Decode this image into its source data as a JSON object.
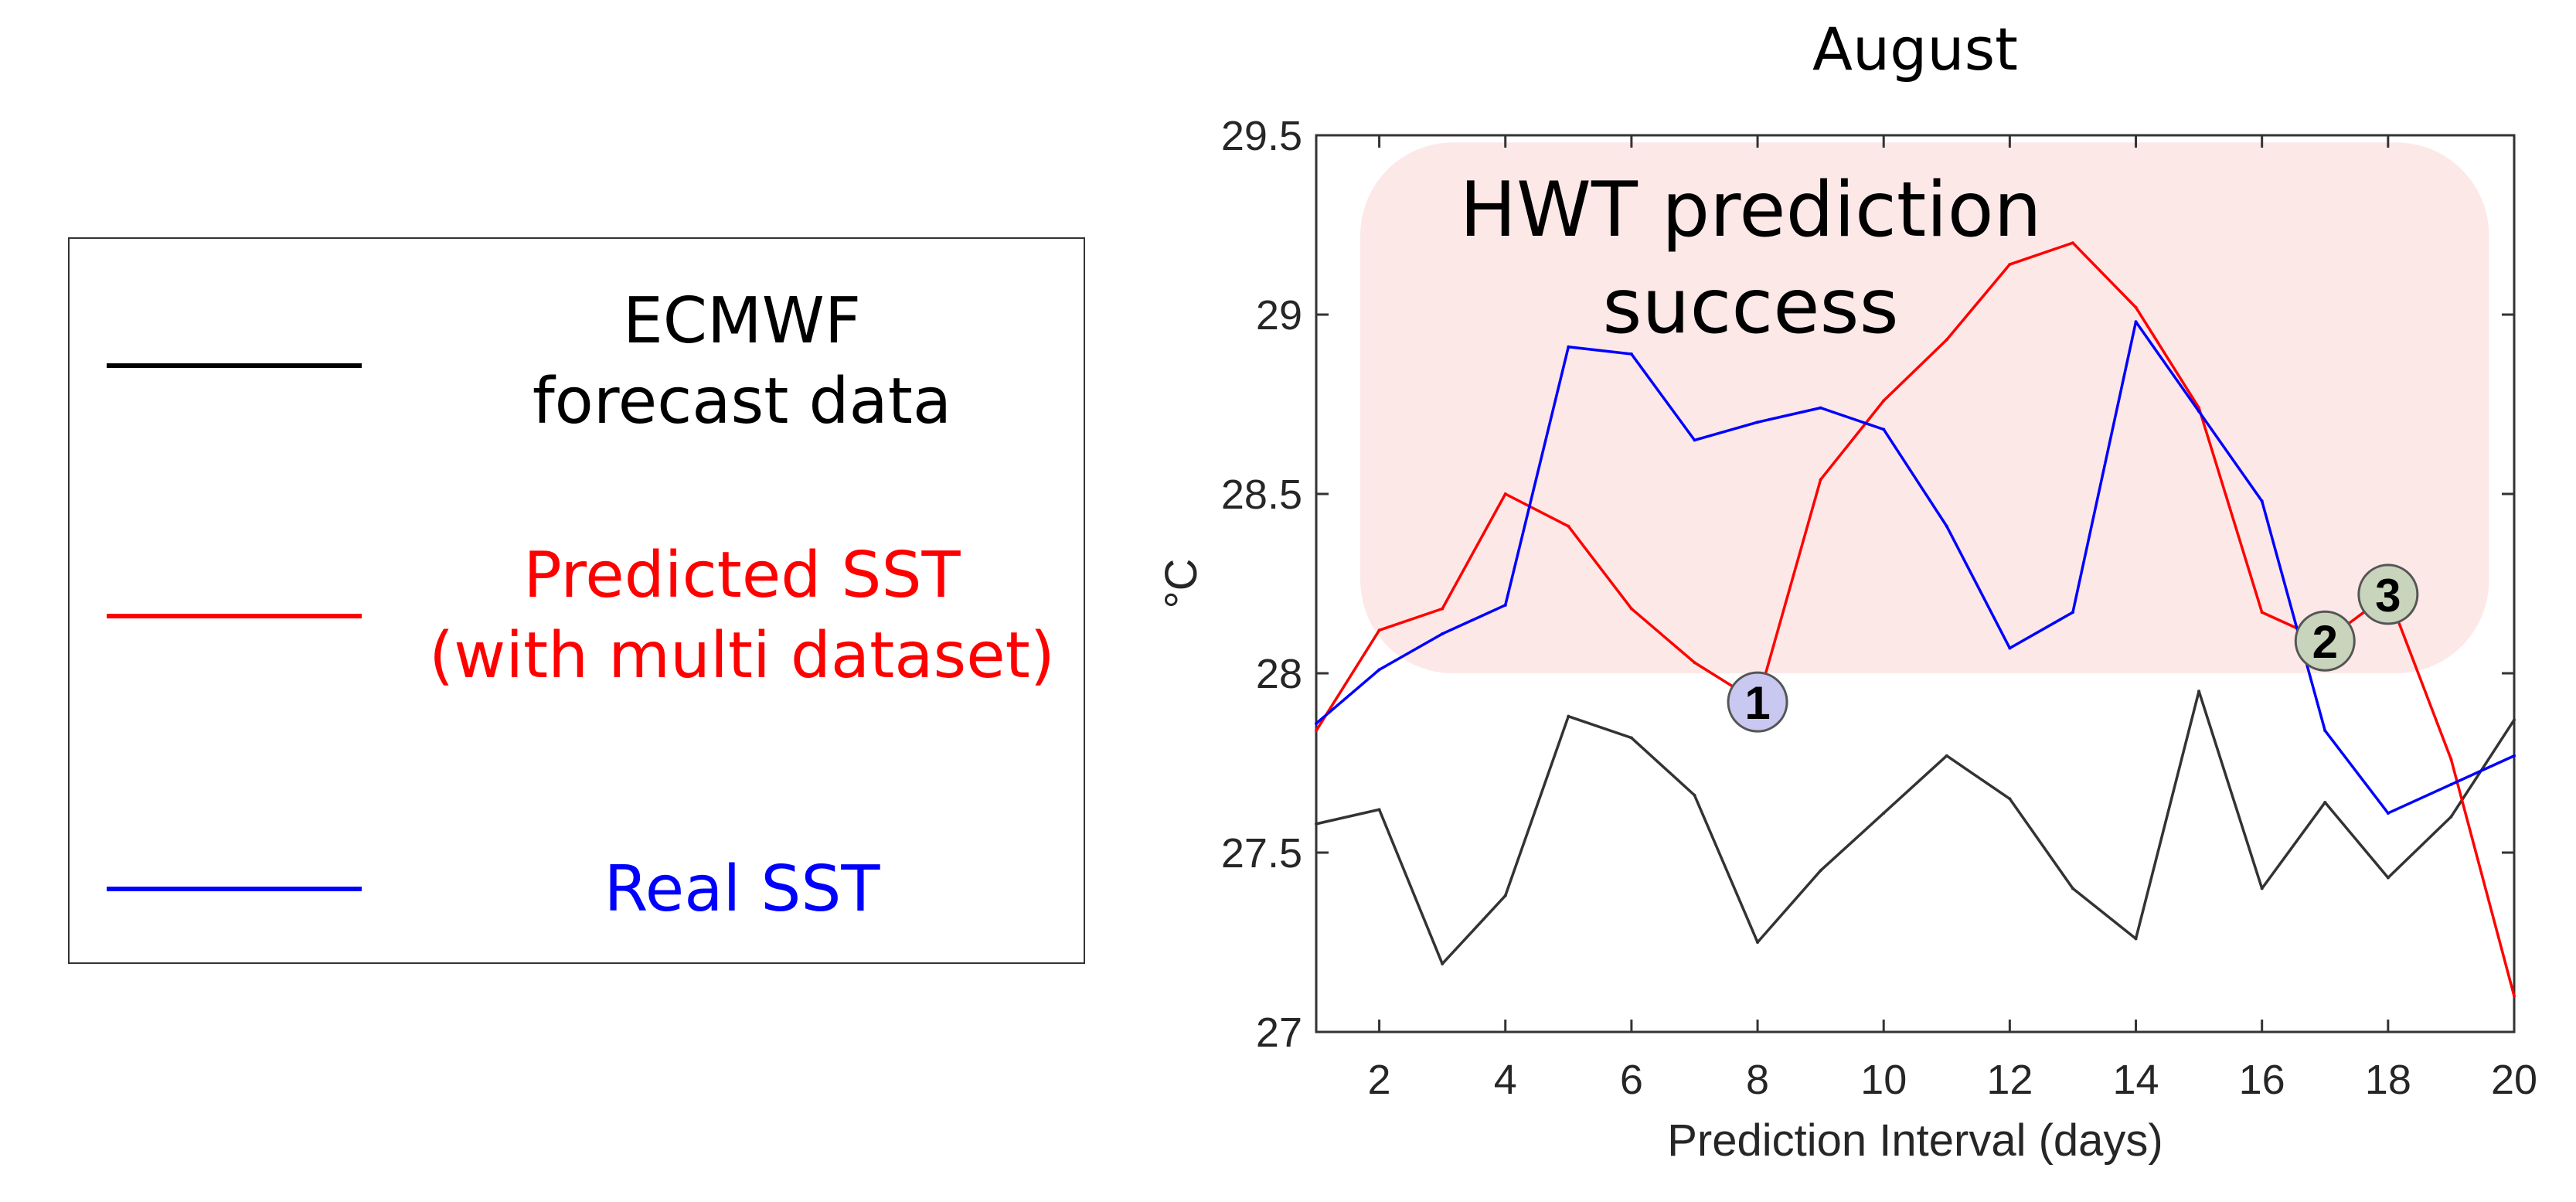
{
  "legend": {
    "items": [
      {
        "label_line1": "ECMWF",
        "label_line2": "forecast data",
        "color": "#000000"
      },
      {
        "label_line1": "Predicted SST",
        "label_line2": "(with multi dataset)",
        "color": "#ff0000"
      },
      {
        "label_line1": "Real SST",
        "label_line2": "",
        "color": "#0000ff"
      }
    ]
  },
  "chart_data": {
    "type": "line",
    "title": "August",
    "xlabel": "Prediction Interval (days)",
    "ylabel": "°C",
    "xlim": [
      1,
      20
    ],
    "ylim": [
      27,
      29.5
    ],
    "xticks": [
      2,
      4,
      6,
      8,
      10,
      12,
      14,
      16,
      18,
      20
    ],
    "yticks": [
      27,
      27.5,
      28,
      28.5,
      29,
      29.5
    ],
    "x": [
      1,
      2,
      3,
      4,
      5,
      6,
      7,
      8,
      9,
      10,
      11,
      12,
      13,
      14,
      15,
      16,
      17,
      18,
      19,
      20
    ],
    "series": [
      {
        "name": "ECMWF forecast data",
        "color": "#333333",
        "values": [
          27.58,
          27.62,
          27.19,
          27.38,
          27.88,
          27.82,
          27.66,
          27.25,
          27.45,
          27.61,
          27.77,
          27.65,
          27.4,
          27.26,
          27.95,
          27.4,
          27.64,
          27.43,
          27.6,
          27.87
        ]
      },
      {
        "name": "Predicted SST (with multi dataset)",
        "color": "#ff0000",
        "values": [
          27.84,
          28.12,
          28.18,
          28.5,
          28.41,
          28.18,
          28.03,
          27.92,
          28.54,
          28.76,
          28.93,
          29.14,
          29.2,
          29.02,
          28.74,
          28.17,
          28.09,
          28.22,
          27.76,
          27.1
        ]
      },
      {
        "name": "Real SST",
        "color": "#0000ff",
        "values": [
          27.86,
          28.01,
          28.11,
          28.19,
          28.91,
          28.89,
          28.65,
          28.7,
          28.74,
          28.68,
          28.41,
          28.07,
          28.17,
          28.98,
          28.73,
          28.48,
          27.84,
          27.61,
          27.69,
          27.77
        ]
      }
    ],
    "highlight_region": {
      "label_line1": "HWT prediction",
      "label_line2": "success",
      "x_range": [
        1.7,
        19.6
      ],
      "y_range": [
        28.0,
        29.48
      ],
      "color": "#fde8e8"
    },
    "markers": [
      {
        "label": "1",
        "x": 8,
        "y": 27.92,
        "color": "#c8c8f0"
      },
      {
        "label": "2",
        "x": 17,
        "y": 28.09,
        "color": "#c8d4bc"
      },
      {
        "label": "3",
        "x": 18,
        "y": 28.22,
        "color": "#c8d4bc"
      }
    ]
  }
}
